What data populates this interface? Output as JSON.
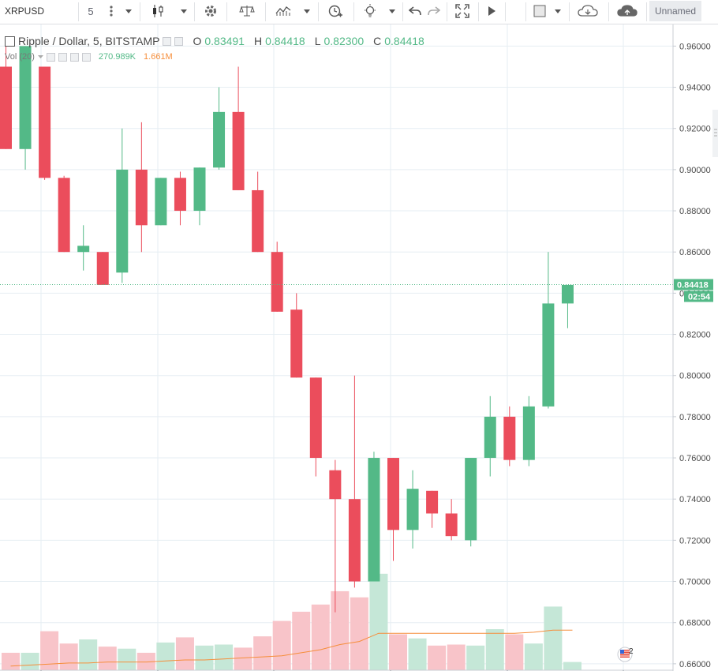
{
  "toolbar": {
    "symbol": "XRPUSD",
    "interval": "5",
    "layout_name": "Unnamed",
    "icons": [
      "more-vert-icon",
      "chevron-down-icon",
      "candles-icon",
      "chevron-down-icon",
      "gear-icon",
      "scales-icon",
      "indicators-icon",
      "chevron-down-icon",
      "alert-clock-icon",
      "lightbulb-icon",
      "chevron-down-icon",
      "undo-icon",
      "redo-icon",
      "fullscreen-icon",
      "play-icon",
      "square-icon",
      "chevron-down-icon",
      "cloud-download-icon",
      "cloud-upload-icon"
    ]
  },
  "legend": {
    "title": "Ripple / Dollar, 5, BITSTAMP",
    "o_label": "O",
    "o_value": "0.83491",
    "h_label": "H",
    "h_value": "0.84418",
    "l_label": "L",
    "l_value": "0.82300",
    "c_label": "C",
    "c_value": "0.84418",
    "vol_label": "Vol (20)",
    "vol_value": "270.989K",
    "vol_ma_value": "1.661M"
  },
  "price_label": "0.84418",
  "countdown": "02:54",
  "badge_count": "2",
  "colors": {
    "up": "#53b987",
    "down": "#eb4d5c",
    "up_vol": "#c5e7d7",
    "down_vol": "#f8c4c9",
    "ma": "#f68e3b",
    "grid": "#e6eef3"
  },
  "chart_data": {
    "type": "candlestick",
    "y_ticks": [
      "0.96000",
      "0.94000",
      "0.92000",
      "0.90000",
      "0.88000",
      "0.86000",
      "0.84000",
      "0.82000",
      "0.80000",
      "0.78000",
      "0.76000",
      "0.74000",
      "0.72000",
      "0.70000",
      "0.68000",
      "0.66000"
    ],
    "ylim": [
      0.6565,
      0.9705
    ],
    "last_price": 0.84418,
    "candles": [
      {
        "o": 0.95,
        "h": 0.96,
        "l": 0.91,
        "c": 0.91
      },
      {
        "o": 0.91,
        "h": 0.96,
        "l": 0.9,
        "c": 0.96
      },
      {
        "o": 0.95,
        "h": 0.95,
        "l": 0.895,
        "c": 0.896
      },
      {
        "o": 0.896,
        "h": 0.897,
        "l": 0.86,
        "c": 0.86
      },
      {
        "o": 0.86,
        "h": 0.873,
        "l": 0.851,
        "c": 0.863
      },
      {
        "o": 0.86,
        "h": 0.86,
        "l": 0.844,
        "c": 0.844
      },
      {
        "o": 0.85,
        "h": 0.92,
        "l": 0.845,
        "c": 0.9
      },
      {
        "o": 0.9,
        "h": 0.923,
        "l": 0.86,
        "c": 0.873
      },
      {
        "o": 0.873,
        "h": 0.896,
        "l": 0.873,
        "c": 0.896
      },
      {
        "o": 0.896,
        "h": 0.899,
        "l": 0.873,
        "c": 0.88
      },
      {
        "o": 0.88,
        "h": 0.901,
        "l": 0.873,
        "c": 0.901
      },
      {
        "o": 0.901,
        "h": 0.94,
        "l": 0.9,
        "c": 0.928
      },
      {
        "o": 0.928,
        "h": 0.95,
        "l": 0.89,
        "c": 0.89
      },
      {
        "o": 0.89,
        "h": 0.899,
        "l": 0.86,
        "c": 0.86
      },
      {
        "o": 0.86,
        "h": 0.865,
        "l": 0.831,
        "c": 0.831
      },
      {
        "o": 0.832,
        "h": 0.84,
        "l": 0.799,
        "c": 0.799
      },
      {
        "o": 0.799,
        "h": 0.799,
        "l": 0.751,
        "c": 0.76
      },
      {
        "o": 0.754,
        "h": 0.759,
        "l": 0.685,
        "c": 0.74
      },
      {
        "o": 0.74,
        "h": 0.8,
        "l": 0.697,
        "c": 0.7
      },
      {
        "o": 0.7,
        "h": 0.763,
        "l": 0.7,
        "c": 0.76
      },
      {
        "o": 0.76,
        "h": 0.76,
        "l": 0.71,
        "c": 0.725
      },
      {
        "o": 0.725,
        "h": 0.754,
        "l": 0.716,
        "c": 0.745
      },
      {
        "o": 0.744,
        "h": 0.744,
        "l": 0.726,
        "c": 0.733
      },
      {
        "o": 0.733,
        "h": 0.74,
        "l": 0.72,
        "c": 0.722
      },
      {
        "o": 0.72,
        "h": 0.76,
        "l": 0.717,
        "c": 0.76
      },
      {
        "o": 0.76,
        "h": 0.79,
        "l": 0.751,
        "c": 0.78
      },
      {
        "o": 0.78,
        "h": 0.785,
        "l": 0.756,
        "c": 0.759
      },
      {
        "o": 0.759,
        "h": 0.79,
        "l": 0.756,
        "c": 0.785
      },
      {
        "o": 0.785,
        "h": 0.86,
        "l": 0.784,
        "c": 0.835
      },
      {
        "o": 0.835,
        "h": 0.844,
        "l": 0.823,
        "c": 0.844
      }
    ],
    "volume_ratios": [
      0.17,
      0.17,
      0.38,
      0.26,
      0.3,
      0.23,
      0.21,
      0.17,
      0.27,
      0.32,
      0.24,
      0.25,
      0.22,
      0.33,
      0.48,
      0.57,
      0.64,
      0.77,
      0.71,
      0.94,
      0.35,
      0.31,
      0.24,
      0.25,
      0.24,
      0.4,
      0.35,
      0.26,
      0.62,
      0.08
    ],
    "volume_ma_ratios": [
      0.04,
      0.05,
      0.06,
      0.07,
      0.07,
      0.08,
      0.08,
      0.08,
      0.09,
      0.1,
      0.1,
      0.11,
      0.12,
      0.13,
      0.14,
      0.17,
      0.2,
      0.25,
      0.28,
      0.36,
      0.36,
      0.36,
      0.36,
      0.36,
      0.36,
      0.36,
      0.36,
      0.37,
      0.39,
      0.39
    ]
  }
}
